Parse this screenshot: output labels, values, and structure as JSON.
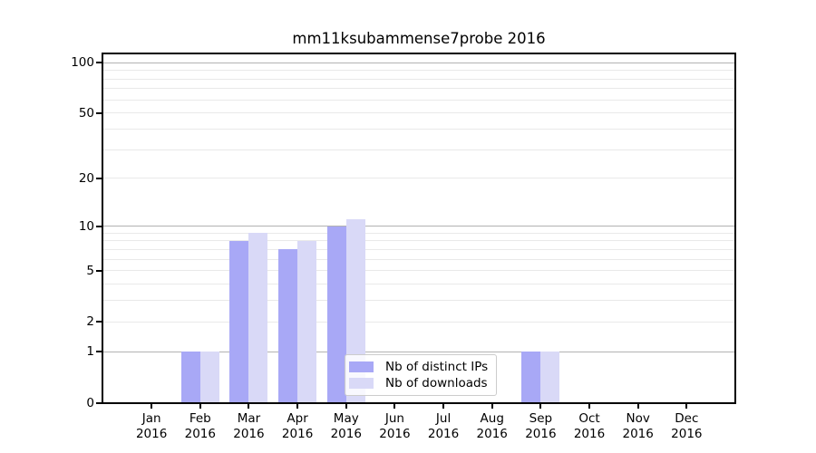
{
  "figure": {
    "background": "#ffffff"
  },
  "chart_data": {
    "type": "bar",
    "title": "mm11ksubammense7probe 2016",
    "x_categories": [
      "Jan",
      "Feb",
      "Mar",
      "Apr",
      "May",
      "Jun",
      "Jul",
      "Aug",
      "Sep",
      "Oct",
      "Nov",
      "Dec"
    ],
    "x_year": "2016",
    "series": [
      {
        "name": "Nb of distinct IPs",
        "color": "#a8a8f6",
        "values": [
          0,
          1,
          8,
          7,
          10,
          0,
          0,
          0,
          1,
          0,
          0,
          0
        ]
      },
      {
        "name": "Nb of downloads",
        "color": "#d9d9f7",
        "values": [
          0,
          1,
          9,
          8,
          11,
          0,
          0,
          0,
          1,
          0,
          0,
          0
        ]
      }
    ],
    "y_axis": {
      "scale": "log1p",
      "tick_values": [
        0,
        1,
        2,
        5,
        10,
        20,
        50,
        100
      ],
      "tick_labels": [
        "0",
        "1",
        "2",
        "5",
        "10",
        "20",
        "50",
        "100"
      ],
      "major_grid_values": [
        1,
        10,
        100
      ],
      "minor_grid_values": [
        2,
        3,
        4,
        5,
        6,
        7,
        8,
        9,
        20,
        30,
        40,
        50,
        60,
        70,
        80,
        90
      ],
      "ylim": [
        0,
        110
      ]
    },
    "grid": {
      "major_color": "#b2b2b2",
      "minor_color": "#e9e9e9",
      "orientation": "horizontal"
    },
    "axis_color": "#000000",
    "legend": {
      "location": "lower center inside axes",
      "items": [
        {
          "label": "Nb of distinct IPs",
          "color": "#a8a8f6"
        },
        {
          "label": "Nb of downloads",
          "color": "#d9d9f7"
        }
      ]
    }
  }
}
